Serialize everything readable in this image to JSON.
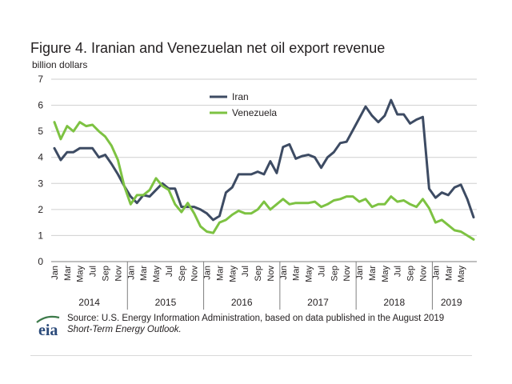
{
  "title": "Figure 4. Iranian and Venezuelan net oil export revenue",
  "unit_label": "billion dollars",
  "source": {
    "line1": "Source: U.S. Energy Information Administration, based on data published in the August 2019",
    "line2": "Short-Term Energy Outlook.",
    "logo_text": "eia"
  },
  "colors": {
    "iran": "#3d4b63",
    "venezuela": "#7dc242",
    "grid": "#cfcfcf",
    "axis": "#7f7f7f"
  },
  "chart_data": {
    "type": "line",
    "title": "Figure 4. Iranian and Venezuelan net oil export revenue",
    "ylabel": "billion dollars",
    "xlabel": "",
    "ylim": [
      0,
      7
    ],
    "yticks": [
      0,
      1,
      2,
      3,
      4,
      5,
      6,
      7
    ],
    "grid": true,
    "legend": "top-center",
    "month_labels": [
      "Jan",
      "Mar",
      "May",
      "Jul",
      "Sep",
      "Nov",
      "Jan",
      "Mar",
      "May",
      "Jul",
      "Sep",
      "Nov",
      "Jan",
      "Mar",
      "May",
      "Jul",
      "Sep",
      "Nov",
      "Jan",
      "Mar",
      "May",
      "Jul",
      "Sep",
      "Nov",
      "Jan",
      "Mar",
      "May",
      "Jul",
      "Sep",
      "Nov",
      "Jan",
      "Mar",
      "May"
    ],
    "years": [
      {
        "label": "2014",
        "start": 0,
        "months": 12
      },
      {
        "label": "2015",
        "start": 12,
        "months": 12
      },
      {
        "label": "2016",
        "start": 24,
        "months": 12
      },
      {
        "label": "2017",
        "start": 36,
        "months": 12
      },
      {
        "label": "2018",
        "start": 48,
        "months": 12
      },
      {
        "label": "2019",
        "start": 60,
        "months": 6
      }
    ],
    "series": [
      {
        "name": "Iran",
        "values": [
          4.35,
          3.9,
          4.2,
          4.2,
          4.35,
          4.35,
          4.35,
          4.0,
          4.1,
          3.75,
          3.35,
          2.9,
          2.5,
          2.25,
          2.55,
          2.5,
          2.75,
          3.0,
          2.8,
          2.8,
          2.1,
          2.1,
          2.1,
          2.0,
          1.85,
          1.6,
          1.75,
          2.65,
          2.85,
          3.35,
          3.35,
          3.35,
          3.45,
          3.35,
          3.85,
          3.4,
          4.4,
          4.5,
          3.95,
          4.05,
          4.1,
          4.0,
          3.6,
          4.0,
          4.2,
          4.55,
          4.6,
          5.05,
          5.5,
          5.95,
          5.6,
          5.35,
          5.6,
          6.2,
          5.65,
          5.65,
          5.3,
          5.45,
          5.55,
          2.8,
          2.45,
          2.65,
          2.55,
          2.85,
          2.95,
          2.4,
          1.7
        ]
      },
      {
        "name": "Venezuela",
        "values": [
          5.35,
          4.7,
          5.2,
          5.0,
          5.35,
          5.2,
          5.25,
          5.0,
          4.8,
          4.45,
          3.9,
          2.9,
          2.2,
          2.55,
          2.55,
          2.75,
          3.2,
          2.9,
          2.75,
          2.2,
          1.9,
          2.25,
          1.85,
          1.35,
          1.15,
          1.1,
          1.5,
          1.6,
          1.8,
          1.95,
          1.85,
          1.85,
          2.0,
          2.3,
          2.0,
          2.2,
          2.4,
          2.2,
          2.25,
          2.25,
          2.25,
          2.3,
          2.1,
          2.2,
          2.35,
          2.4,
          2.5,
          2.5,
          2.3,
          2.4,
          2.1,
          2.2,
          2.2,
          2.5,
          2.3,
          2.35,
          2.2,
          2.1,
          2.4,
          2.05,
          1.5,
          1.6,
          1.4,
          1.2,
          1.15,
          1.0,
          0.85
        ]
      }
    ]
  }
}
